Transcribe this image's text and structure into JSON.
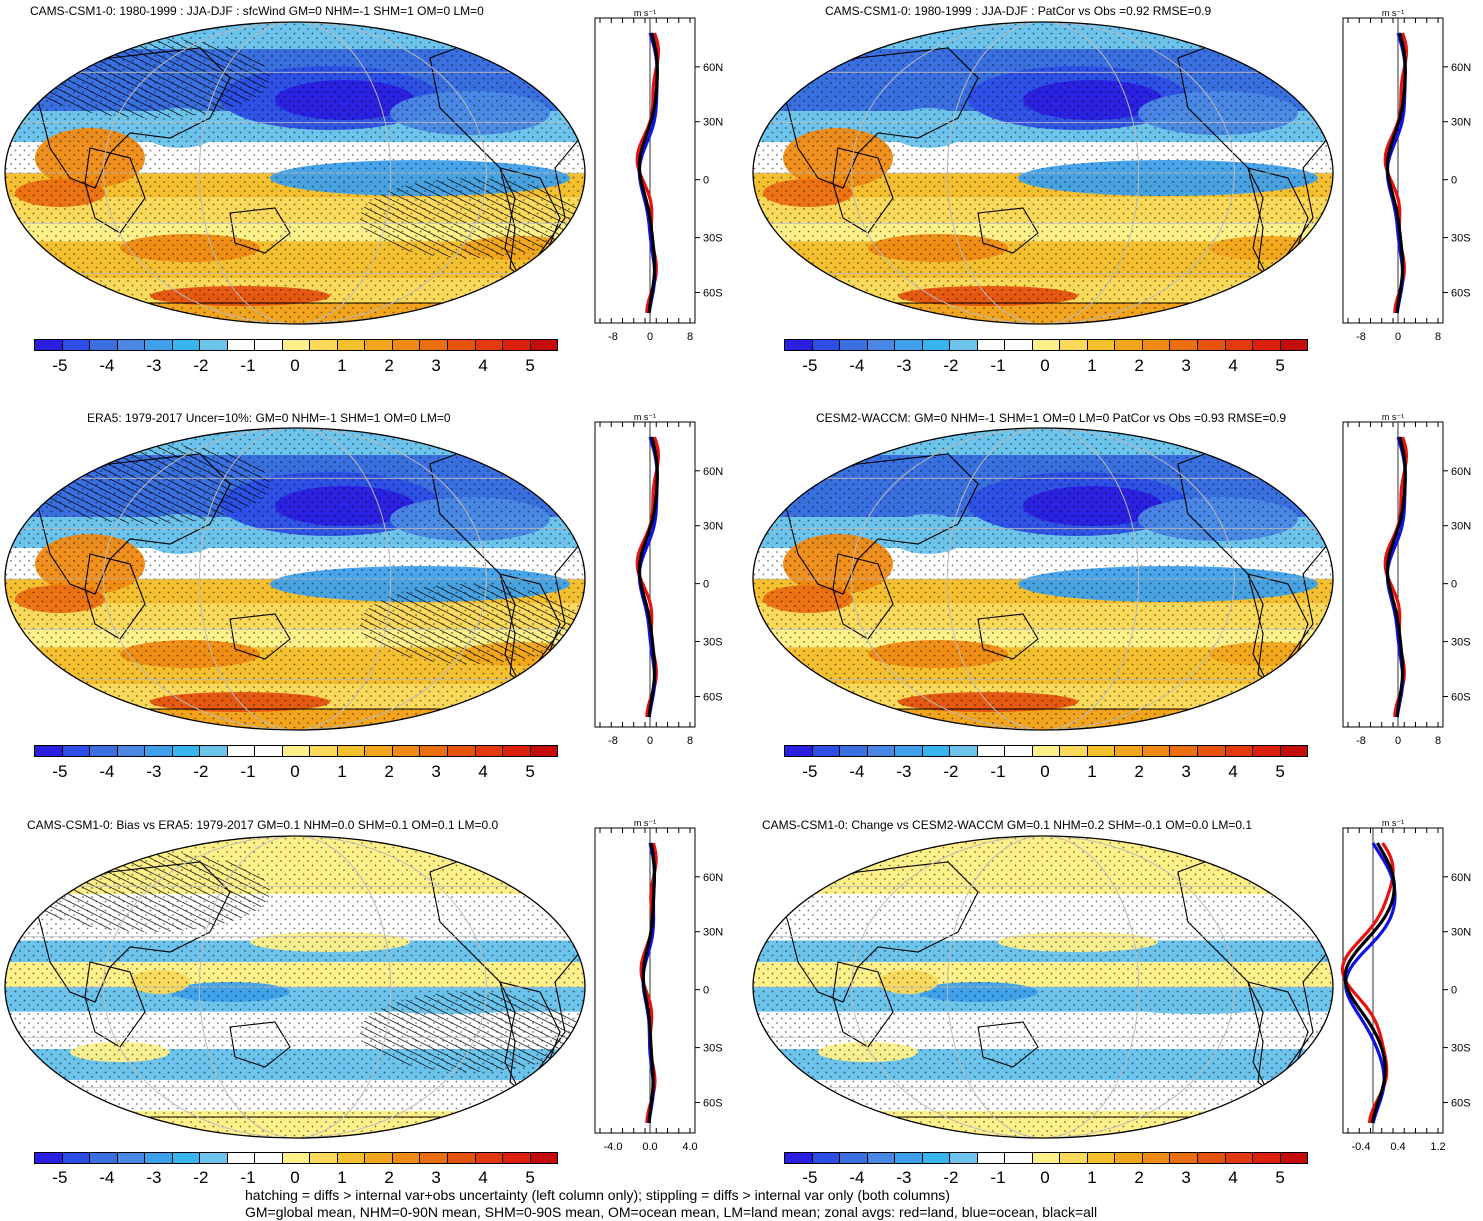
{
  "panels": [
    {
      "id": "p1",
      "title": "CAMS-CSM1-0: 1980-1999 : JJA-DJF : sfcWind GM=0 NHM=-1 SHM=1 OM=0 LM=0",
      "zonal_unit": "m s⁻¹",
      "zonal_xticks": [
        "-8",
        "0",
        "8"
      ],
      "zonal_lat_labels": [
        "60N",
        "30N",
        "0",
        "30S",
        "60S"
      ],
      "pattern": "climatology",
      "hatching": true
    },
    {
      "id": "p2",
      "title": "CAMS-CSM1-0: 1980-1999 : JJA-DJF : PatCor vs Obs =0.92 RMSE=0.9",
      "zonal_unit": "m s⁻¹",
      "zonal_xticks": [
        "-8",
        "0",
        "8"
      ],
      "zonal_lat_labels": [
        "60N",
        "30N",
        "0",
        "30S",
        "60S"
      ],
      "pattern": "climatology",
      "hatching": false
    },
    {
      "id": "p3",
      "title": "ERA5: 1979-2017 Uncer=10%: GM=0 NHM=-1 SHM=1 OM=0 LM=0",
      "zonal_unit": "m s⁻¹",
      "zonal_xticks": [
        "-8",
        "0",
        "8"
      ],
      "zonal_lat_labels": [
        "60N",
        "30N",
        "0",
        "30S",
        "60S"
      ],
      "pattern": "climatology",
      "hatching": true
    },
    {
      "id": "p4",
      "title": "CESM2-WACCM: GM=0 NHM=-1 SHM=1 OM=0 LM=0 PatCor vs Obs =0.93 RMSE=0.9",
      "zonal_unit": "m s⁻¹",
      "zonal_xticks": [
        "-8",
        "0",
        "8"
      ],
      "zonal_lat_labels": [
        "60N",
        "30N",
        "0",
        "30S",
        "60S"
      ],
      "pattern": "climatology",
      "hatching": false
    },
    {
      "id": "p5",
      "title": "CAMS-CSM1-0: Bias vs ERA5: 1979-2017 GM=0.1 NHM=0.0 SHM=0.1 OM=0.1 LM=0.0",
      "zonal_unit": "m s⁻¹",
      "zonal_xticks": [
        "-4.0",
        "0.0",
        "4.0"
      ],
      "zonal_lat_labels": [
        "60N",
        "30N",
        "0",
        "30S",
        "60S"
      ],
      "pattern": "difference",
      "hatching": true
    },
    {
      "id": "p6",
      "title": "CAMS-CSM1-0: Change vs CESM2-WACCM GM=0.1 NHM=0.2 SHM=-0.1 OM=0.0 LM=0.1",
      "zonal_unit": "m s⁻¹",
      "zonal_xticks": [
        "-0.4",
        "0.4",
        "1.2"
      ],
      "zonal_lat_labels": [
        "60N",
        "30N",
        "0",
        "30S",
        "60S"
      ],
      "pattern": "difference",
      "hatching": false
    }
  ],
  "colorbar": {
    "labels": [
      "-5",
      "-4",
      "-3",
      "-2",
      "-1",
      "0",
      "1",
      "2",
      "3",
      "4",
      "5"
    ],
    "colors": [
      "#2a1fe0",
      "#2c4ee6",
      "#3a6fe0",
      "#4a88e4",
      "#3ea0ea",
      "#38b5ee",
      "#6cc3ec",
      "#ffffff",
      "#ffffff",
      "#fff08a",
      "#fbd95a",
      "#f5c030",
      "#f2a51c",
      "#ef8a12",
      "#eb6f10",
      "#e5520e",
      "#e23a0e",
      "#dc200e",
      "#c40c0c"
    ]
  },
  "zonal_legend_colors": {
    "land": "#e81010",
    "ocean": "#1010e8",
    "all": "#000000"
  },
  "footer": {
    "line1": "hatching = diffs > internal var+obs uncertainty (left column only); stippling = diffs > internal var only (both columns)",
    "line2": "GM=global mean, NHM=0-90N mean, SHM=0-90S mean, OM=ocean mean, LM=land mean; zonal avgs: red=land, blue=ocean, black=all"
  }
}
